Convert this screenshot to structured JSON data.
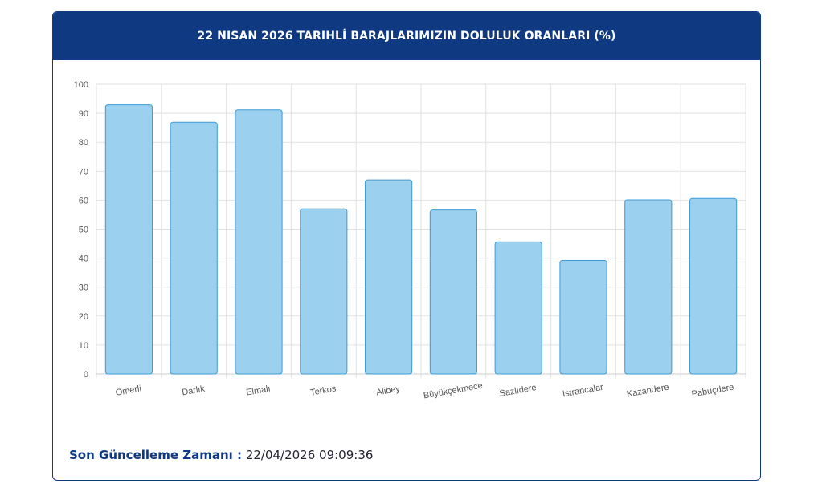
{
  "header": {
    "title": "22 NISAN 2026 TARIHLİ BARAJLARIMIZIN DOLULUK ORANLARI (%)"
  },
  "footer": {
    "label": "Son Güncelleme Zamanı :",
    "value": "22/04/2026 09:09:36"
  },
  "colors": {
    "header_bg": "#0f3a82",
    "bar_fill": "#9bd0ee",
    "bar_stroke": "#3d9bd6",
    "grid": "#e2e2e2",
    "tick": "#555555"
  },
  "chart_data": {
    "type": "bar",
    "categories": [
      "Ömerli",
      "Darlık",
      "Elmalı",
      "Terkos",
      "Alibey",
      "Büyükçekmece",
      "Sazlıdere",
      "Istrancalar",
      "Kazandere",
      "Pabuçdere"
    ],
    "values": [
      92.9,
      86.9,
      91.2,
      57.0,
      67.0,
      56.6,
      45.6,
      39.2,
      60.1,
      60.6
    ],
    "ylim": [
      0,
      100
    ],
    "yticks": [
      0,
      10,
      20,
      30,
      40,
      50,
      60,
      70,
      80,
      90,
      100
    ],
    "grid": true,
    "legend": "none"
  }
}
